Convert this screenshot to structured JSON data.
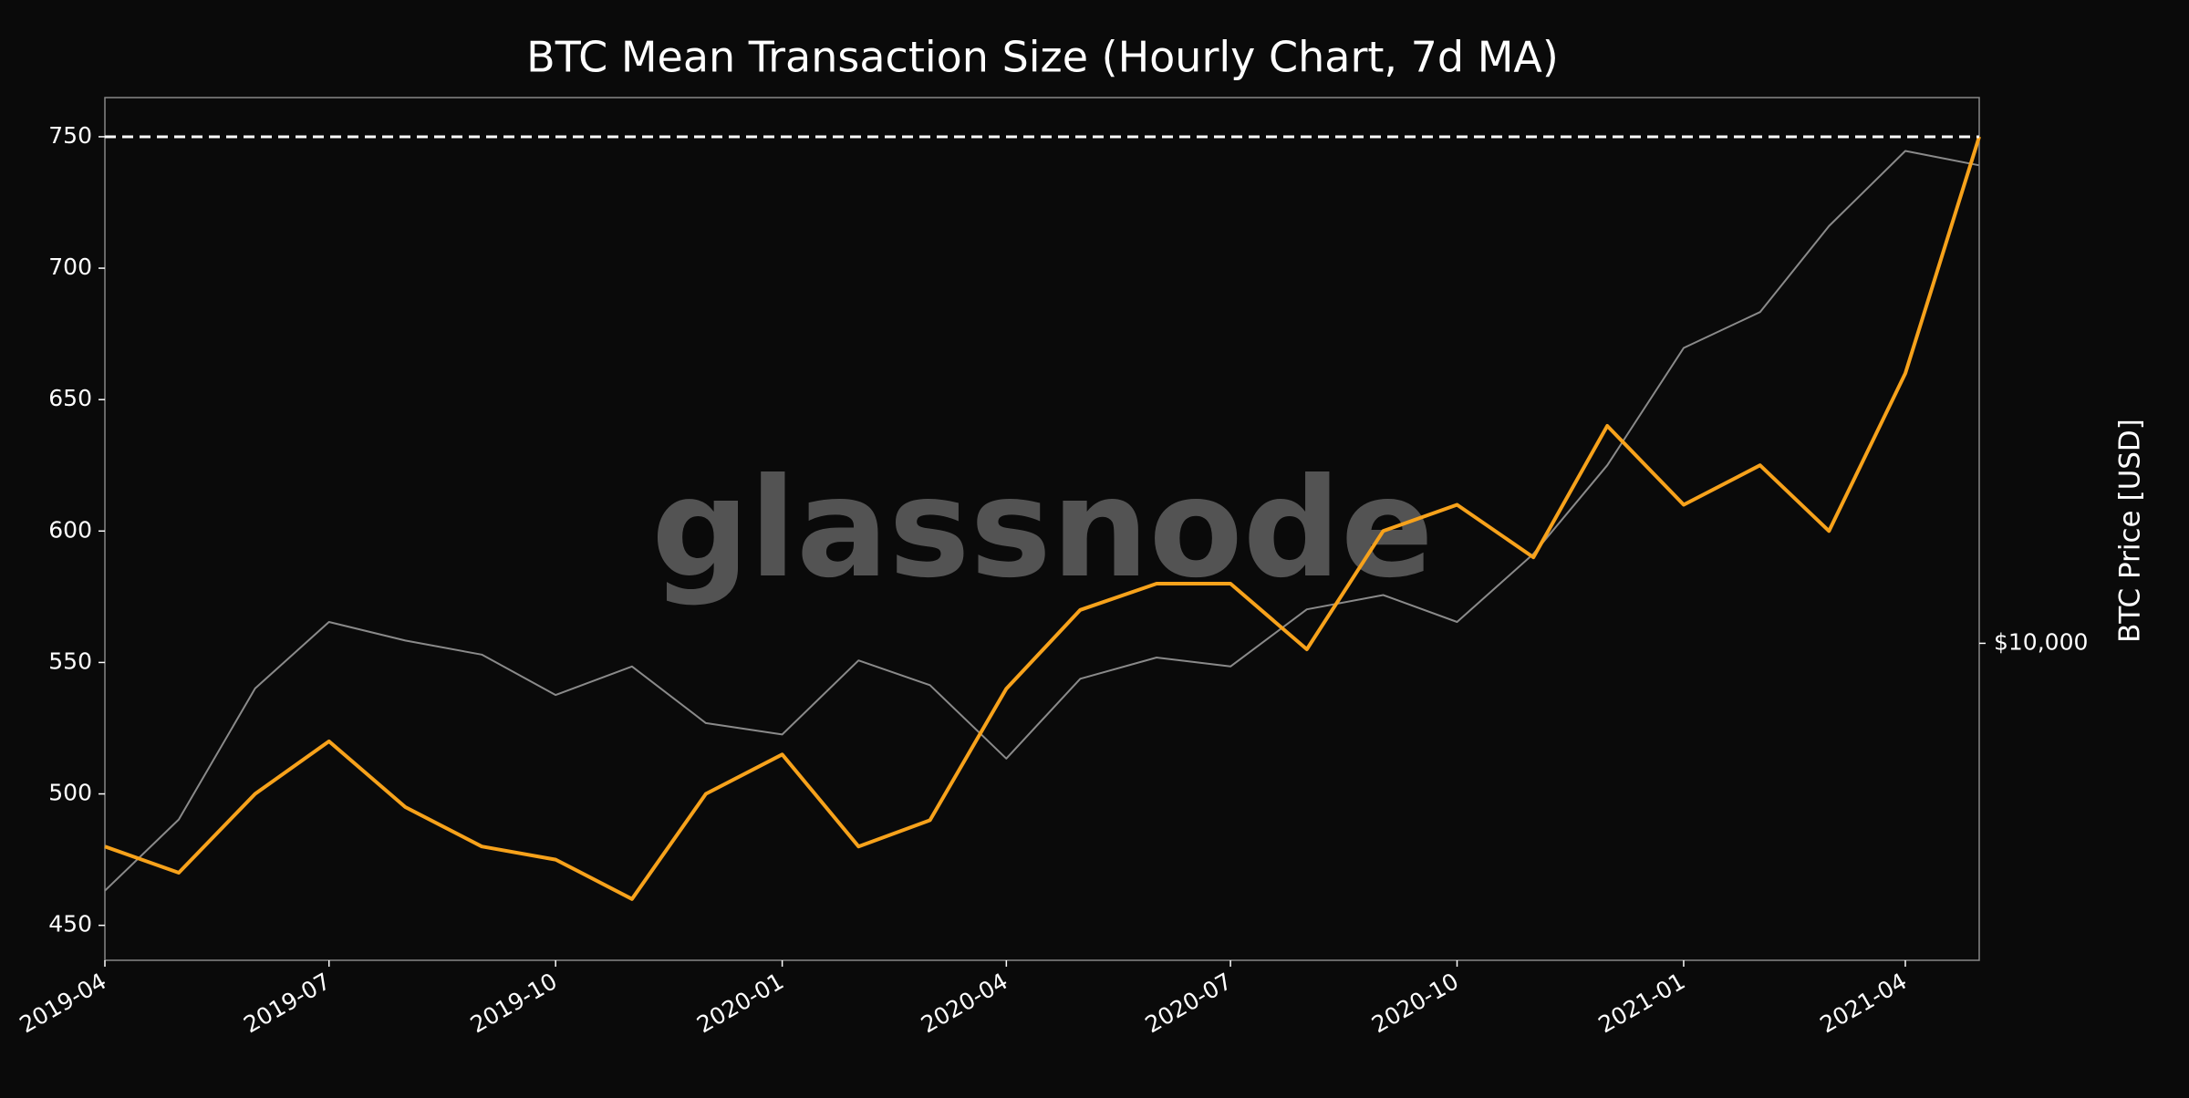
{
  "chart_data": {
    "type": "line",
    "title": "BTC Mean Transaction Size (Hourly Chart, 7d MA)",
    "watermark": "glassnode",
    "y2_label": "BTC Price [USD]",
    "x": [
      "2019-04",
      "2019-05",
      "2019-06",
      "2019-07",
      "2019-08",
      "2019-09",
      "2019-10",
      "2019-11",
      "2019-12",
      "2020-01",
      "2020-02",
      "2020-03",
      "2020-04",
      "2020-05",
      "2020-06",
      "2020-07",
      "2020-08",
      "2020-09",
      "2020-10",
      "2020-11",
      "2020-12",
      "2021-01",
      "2021-02",
      "2021-03",
      "2021-04",
      "2021-05"
    ],
    "series": [
      {
        "name": "Mean Transaction Size",
        "color": "#f7a21b",
        "axis": "y",
        "values": [
          480,
          470,
          500,
          520,
          495,
          480,
          475,
          460,
          500,
          515,
          480,
          490,
          540,
          570,
          580,
          580,
          555,
          600,
          610,
          590,
          640,
          610,
          625,
          600,
          660,
          750
        ]
      },
      {
        "name": "BTC Price",
        "color": "#8a8a8a",
        "axis": "y2",
        "values": [
          4100,
          5300,
          8500,
          10800,
          10100,
          9600,
          8300,
          9200,
          7500,
          7200,
          9400,
          8600,
          6600,
          8800,
          9500,
          9200,
          11300,
          11900,
          10800,
          13800,
          19000,
          29000,
          33000,
          45000,
          59000,
          56000
        ]
      }
    ],
    "xlim": [
      "2019-04",
      "2021-05"
    ],
    "xticks": [
      "2019-04",
      "2019-07",
      "2019-10",
      "2020-01",
      "2020-04",
      "2020-07",
      "2020-10",
      "2021-01",
      "2021-04"
    ],
    "ylim": [
      436.7,
      764.9
    ],
    "yticks": [
      450,
      500,
      550,
      600,
      650,
      700,
      750
    ],
    "y2lim": [
      3190,
      71500
    ],
    "y2_log": true,
    "y2ticks": [
      {
        "value": 10000,
        "label": "$10,000"
      }
    ],
    "hline": 750,
    "grid": false
  }
}
